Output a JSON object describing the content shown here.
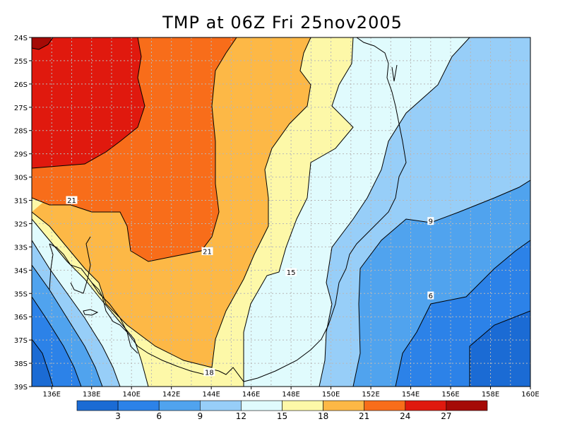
{
  "title": "TMP at 06Z Fri 25nov2005",
  "chart_data": {
    "type": "heatmap",
    "title": "TMP at 06Z Fri 25nov2005",
    "x_ticks": [
      "136E",
      "138E",
      "140E",
      "142E",
      "144E",
      "146E",
      "148E",
      "150E",
      "152E",
      "154E",
      "156E",
      "158E",
      "160E"
    ],
    "y_ticks": [
      "24S",
      "25S",
      "26S",
      "27S",
      "28S",
      "29S",
      "30S",
      "31S",
      "32S",
      "33S",
      "34S",
      "35S",
      "36S",
      "37S",
      "38S",
      "39S"
    ],
    "xlim": [
      135,
      160
    ],
    "ylim": [
      -39,
      -24
    ],
    "grid": true,
    "contour_levels": [
      3,
      6,
      9,
      12,
      15,
      18,
      21,
      24,
      27
    ],
    "contour_labels": [
      {
        "text": "21",
        "lon": 137.0,
        "lat": -31.0
      },
      {
        "text": "21",
        "lon": 143.8,
        "lat": -33.2
      },
      {
        "text": "15",
        "lon": 148.0,
        "lat": -34.1
      },
      {
        "text": "18",
        "lon": 143.9,
        "lat": -38.4
      },
      {
        "text": "9",
        "lon": 155.0,
        "lat": -31.9
      },
      {
        "text": "6",
        "lon": 155.0,
        "lat": -35.1
      }
    ],
    "colorbar": {
      "labels": [
        "3",
        "6",
        "9",
        "12",
        "15",
        "18",
        "21",
        "24",
        "27"
      ],
      "colors": [
        "#1b6bd4",
        "#2c82e8",
        "#50a3ee",
        "#97cef8",
        "#e0fbfd",
        "#fdf8a8",
        "#fdb846",
        "#f86d1a",
        "#e0190e",
        "#a50a06"
      ]
    }
  }
}
